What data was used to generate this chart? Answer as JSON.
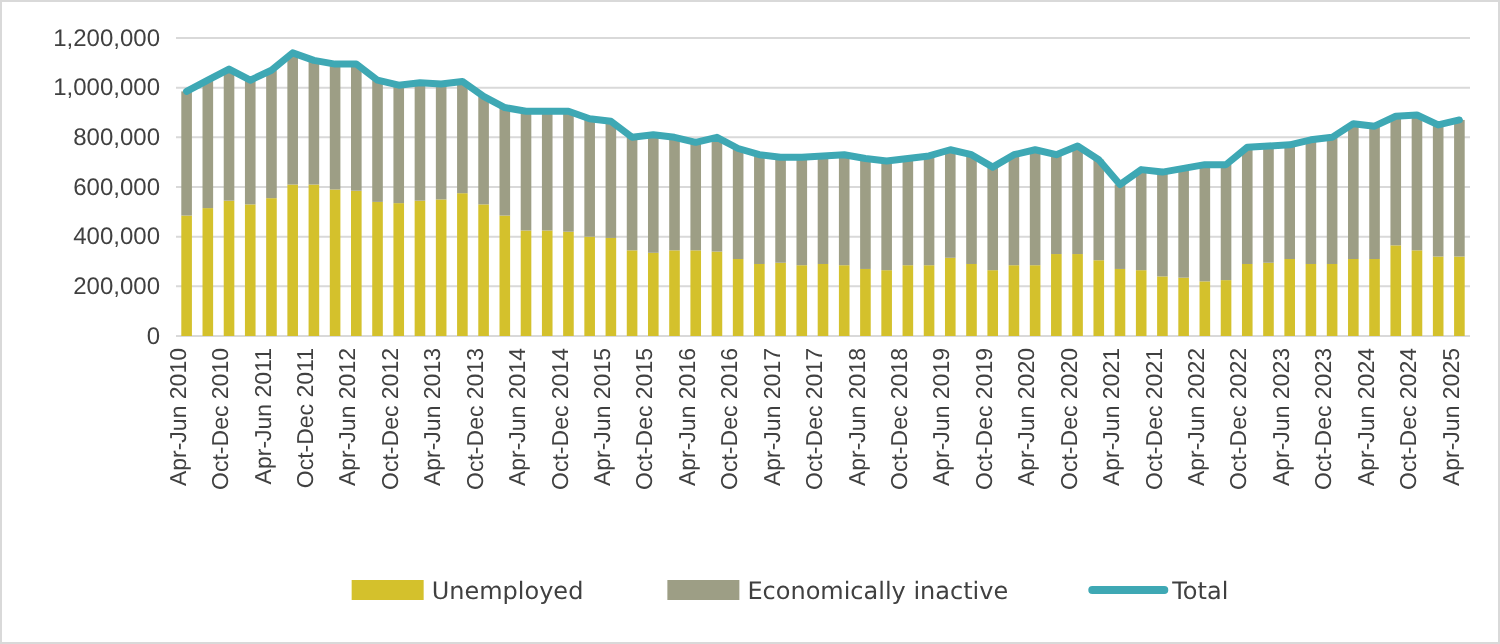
{
  "chart_data": {
    "type": "bar",
    "stacked": true,
    "grid": "y",
    "legend": "bottom",
    "categories": [
      "Apr-Jun 2010",
      null,
      "Oct-Dec 2010",
      null,
      "Apr-Jun 2011",
      null,
      "Oct-Dec 2011",
      null,
      "Apr-Jun 2012",
      null,
      "Oct-Dec 2012",
      null,
      "Apr-Jun 2013",
      null,
      "Oct-Dec 2013",
      null,
      "Apr-Jun 2014",
      null,
      "Oct-Dec 2014",
      null,
      "Apr-Jun 2015",
      null,
      "Oct-Dec 2015",
      null,
      "Apr-Jun 2016",
      null,
      "Oct-Dec 2016",
      null,
      "Apr-Jun 2017",
      null,
      "Oct-Dec 2017",
      null,
      "Apr-Jun 2018",
      null,
      "Oct-Dec 2018",
      null,
      "Apr-Jun 2019",
      null,
      "Oct-Dec 2019",
      null,
      "Apr-Jun 2020",
      null,
      "Oct-Dec 2020",
      null,
      "Apr-Jun 2021",
      null,
      "Oct-Dec 2021",
      null,
      "Apr-Jun 2022",
      null,
      "Oct-Dec 2022",
      null,
      "Apr-Jun 2023",
      null,
      "Oct-Dec 2023",
      null,
      "Apr-Jun 2024",
      null,
      "Oct-Dec 2024",
      null,
      "Apr-Jun 2025"
    ],
    "ylim": [
      0,
      1200000
    ],
    "yticks": [
      0,
      {
        "value": 200000,
        "label": "200,000"
      },
      {
        "value": 400000,
        "label": "400,000"
      },
      {
        "value": 600000,
        "label": "600,000"
      },
      {
        "value": 800000,
        "label": "800,000"
      },
      {
        "value": 1000000,
        "label": "1,000,000"
      },
      {
        "value": 1200000,
        "label": "1,200,000"
      }
    ],
    "series": [
      {
        "name": "Unemployed",
        "color": "#d4c12c",
        "values": [
          485000,
          515000,
          545000,
          530000,
          555000,
          610000,
          610000,
          590000,
          585000,
          540000,
          535000,
          545000,
          550000,
          575000,
          530000,
          485000,
          425000,
          425000,
          420000,
          400000,
          395000,
          345000,
          335000,
          345000,
          345000,
          340000,
          310000,
          290000,
          295000,
          285000,
          290000,
          285000,
          270000,
          265000,
          285000,
          285000,
          315000,
          290000,
          265000,
          285000,
          285000,
          330000,
          330000,
          305000,
          270000,
          265000,
          240000,
          235000,
          220000,
          225000,
          290000,
          295000,
          310000,
          290000,
          290000,
          310000,
          310000,
          365000,
          345000,
          320000,
          320000
        ]
      },
      {
        "name": "Economically inactive",
        "color": "#9d9e85",
        "values": [
          500000,
          515000,
          530000,
          500000,
          515000,
          530000,
          500000,
          505000,
          510000,
          490000,
          475000,
          475000,
          465000,
          450000,
          435000,
          435000,
          480000,
          480000,
          485000,
          475000,
          470000,
          455000,
          475000,
          455000,
          435000,
          460000,
          445000,
          440000,
          425000,
          435000,
          435000,
          445000,
          445000,
          440000,
          430000,
          440000,
          435000,
          440000,
          415000,
          445000,
          465000,
          400000,
          435000,
          405000,
          340000,
          405000,
          420000,
          440000,
          470000,
          465000,
          470000,
          470000,
          460000,
          500000,
          510000,
          545000,
          535000,
          520000,
          545000,
          530000,
          550000
        ]
      },
      {
        "name": "Total",
        "type": "line",
        "color": "#3ea8b4",
        "values": [
          985000,
          1030000,
          1075000,
          1030000,
          1070000,
          1140000,
          1110000,
          1095000,
          1095000,
          1030000,
          1010000,
          1020000,
          1015000,
          1025000,
          965000,
          920000,
          905000,
          905000,
          905000,
          875000,
          865000,
          800000,
          810000,
          800000,
          780000,
          800000,
          755000,
          730000,
          720000,
          720000,
          725000,
          730000,
          715000,
          705000,
          715000,
          725000,
          750000,
          730000,
          680000,
          730000,
          750000,
          730000,
          765000,
          710000,
          610000,
          670000,
          660000,
          675000,
          690000,
          690000,
          760000,
          765000,
          770000,
          790000,
          800000,
          855000,
          845000,
          885000,
          890000,
          850000,
          870000
        ]
      }
    ]
  }
}
